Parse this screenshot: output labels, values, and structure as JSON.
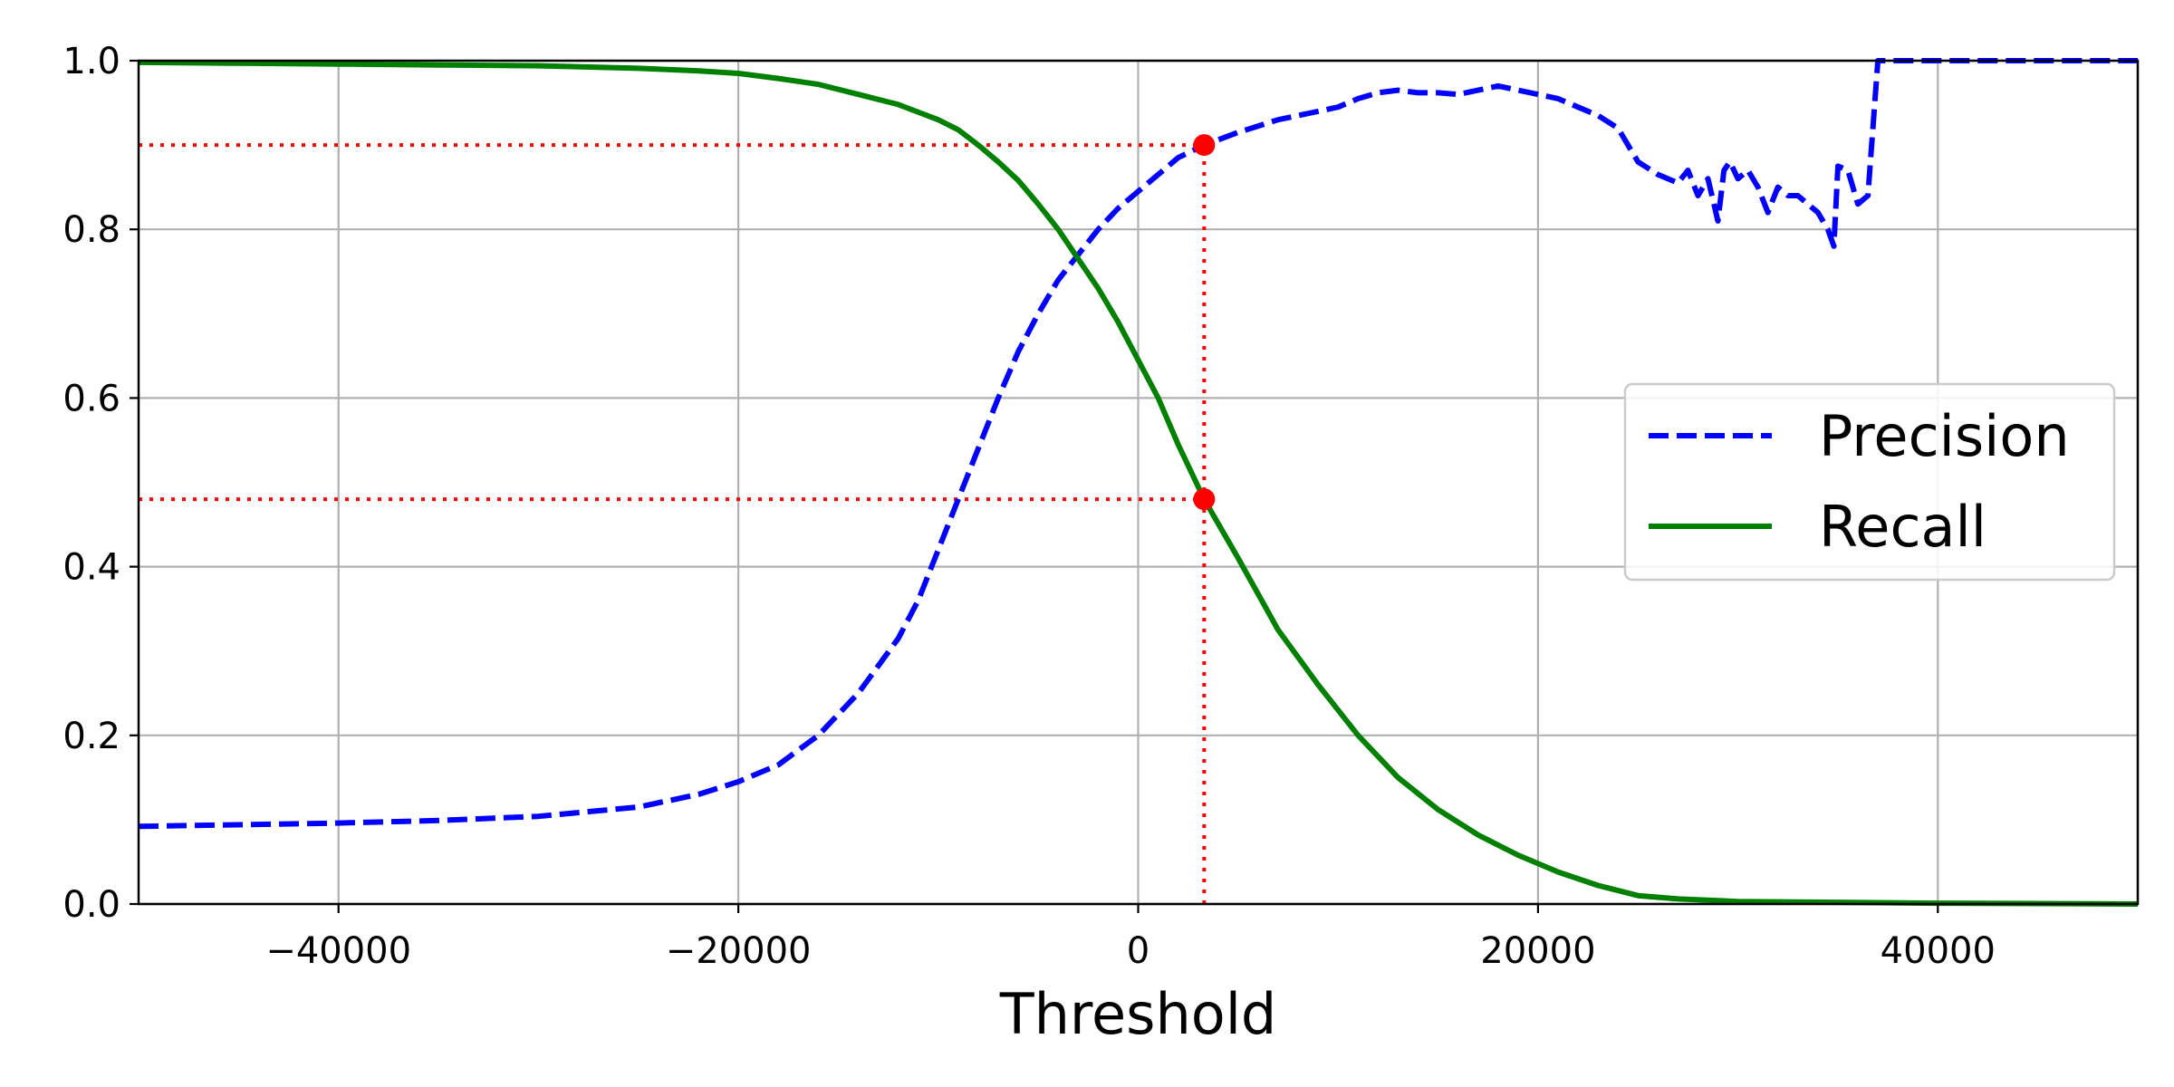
{
  "chart_data": {
    "type": "line",
    "title": "",
    "xlabel": "Threshold",
    "ylabel": "",
    "xlim": [
      -50000,
      50000
    ],
    "ylim": [
      0.0,
      1.0
    ],
    "grid": true,
    "legend_position": "center-right",
    "x_ticks": [
      -40000,
      -20000,
      0,
      20000,
      40000
    ],
    "x_tick_labels": [
      "−40000",
      "−20000",
      "0",
      "20000",
      "40000"
    ],
    "y_ticks": [
      0.0,
      0.2,
      0.4,
      0.6,
      0.8,
      1.0
    ],
    "y_tick_labels": [
      "0.0",
      "0.2",
      "0.4",
      "0.6",
      "0.8",
      "1.0"
    ],
    "series": [
      {
        "name": "Precision",
        "color": "#0000ff",
        "style": "dashed",
        "x": [
          -50000,
          -45000,
          -40000,
          -35000,
          -30000,
          -25000,
          -22000,
          -20000,
          -18000,
          -16000,
          -14000,
          -12000,
          -11000,
          -10000,
          -9000,
          -8000,
          -7000,
          -6000,
          -5000,
          -4000,
          -3000,
          -2000,
          -1000,
          0,
          1000,
          2000,
          3300,
          5000,
          7000,
          9000,
          10000,
          11000,
          12000,
          13000,
          14000,
          15000,
          16000,
          17000,
          18000,
          19000,
          20000,
          21000,
          22000,
          23000,
          24000,
          25000,
          26000,
          27000,
          27500,
          28000,
          28500,
          29000,
          29300,
          29600,
          30000,
          30500,
          31000,
          31500,
          32000,
          32500,
          33000,
          33500,
          34000,
          34500,
          34800,
          35000,
          35500,
          36000,
          36500,
          37000,
          38000,
          40000,
          45000,
          50000
        ],
        "y": [
          0.092,
          0.094,
          0.096,
          0.099,
          0.104,
          0.115,
          0.13,
          0.145,
          0.165,
          0.2,
          0.25,
          0.315,
          0.36,
          0.42,
          0.48,
          0.54,
          0.6,
          0.655,
          0.7,
          0.74,
          0.77,
          0.8,
          0.825,
          0.845,
          0.865,
          0.885,
          0.9,
          0.915,
          0.93,
          0.94,
          0.945,
          0.955,
          0.962,
          0.965,
          0.962,
          0.962,
          0.96,
          0.965,
          0.97,
          0.965,
          0.96,
          0.955,
          0.945,
          0.935,
          0.92,
          0.88,
          0.865,
          0.855,
          0.87,
          0.84,
          0.86,
          0.81,
          0.87,
          0.88,
          0.86,
          0.87,
          0.85,
          0.82,
          0.85,
          0.84,
          0.84,
          0.83,
          0.82,
          0.8,
          0.78,
          0.875,
          0.87,
          0.83,
          0.84,
          1.0,
          1.0,
          1.0,
          1.0,
          1.0
        ]
      },
      {
        "name": "Recall",
        "color": "#008000",
        "style": "solid",
        "x": [
          -50000,
          -45000,
          -40000,
          -35000,
          -30000,
          -25000,
          -22000,
          -20000,
          -18000,
          -16000,
          -14000,
          -12000,
          -10000,
          -9000,
          -8000,
          -7000,
          -6000,
          -5000,
          -4000,
          -3000,
          -2000,
          -1000,
          0,
          1000,
          2000,
          3300,
          5000,
          7000,
          9000,
          11000,
          13000,
          15000,
          17000,
          19000,
          21000,
          23000,
          25000,
          27000,
          30000,
          35000,
          40000,
          45000,
          50000
        ],
        "y": [
          0.998,
          0.997,
          0.996,
          0.995,
          0.994,
          0.991,
          0.988,
          0.985,
          0.979,
          0.972,
          0.96,
          0.948,
          0.93,
          0.918,
          0.9,
          0.88,
          0.858,
          0.83,
          0.8,
          0.765,
          0.73,
          0.69,
          0.645,
          0.6,
          0.545,
          0.48,
          0.41,
          0.325,
          0.26,
          0.2,
          0.15,
          0.112,
          0.082,
          0.058,
          0.038,
          0.022,
          0.01,
          0.006,
          0.003,
          0.002,
          0.001,
          0.0005,
          0.0
        ]
      }
    ],
    "markers": [
      {
        "x": 3300,
        "y": 0.9,
        "color": "#ff0000"
      },
      {
        "x": 3300,
        "y": 0.48,
        "color": "#ff0000"
      }
    ],
    "reference_lines": [
      {
        "x1": -50000,
        "y1": 0.9,
        "x2": 3300,
        "y2": 0.9,
        "color": "#ff0000",
        "style": "dotted"
      },
      {
        "x1": -50000,
        "y1": 0.48,
        "x2": 3300,
        "y2": 0.48,
        "color": "#ff0000",
        "style": "dotted"
      },
      {
        "x1": 3300,
        "y1": 0.0,
        "x2": 3300,
        "y2": 0.9,
        "color": "#ff0000",
        "style": "dotted"
      }
    ]
  }
}
